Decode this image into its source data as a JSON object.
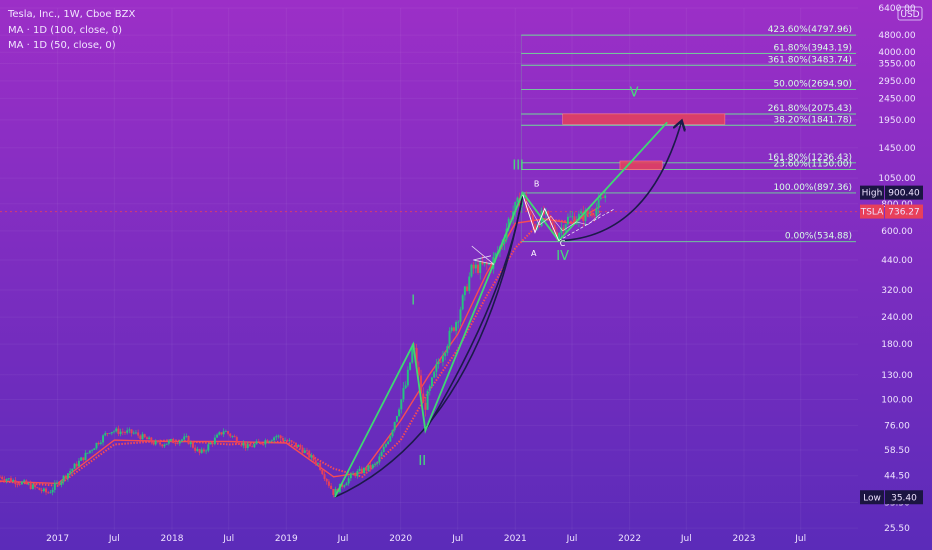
{
  "header": {
    "symbol_line": "Tesla, Inc., 1W, Cboe BZX",
    "ma1": "MA · 1D (100, close, 0)",
    "ma2": "MA · 1D (50, close, 0)"
  },
  "currency": "USD",
  "colors": {
    "bg_top": "#9a2ec4",
    "bg_bottom": "#5a2ab8",
    "fib": "#6fdc96",
    "wave": "#3fd874",
    "curve": "#1c1a4a",
    "candle_up": "#26c281",
    "candle_down": "#e8405a",
    "ma": "#ff4d4d",
    "zone": "#e8405a",
    "tsla": "#e8405a"
  },
  "chart_data": {
    "type": "candlestick",
    "scale": "log",
    "ylim": [
      25,
      6400
    ],
    "xlim": [
      "2016-07-01",
      "2023-12-31"
    ],
    "y_ticks": [
      "6400.00",
      "4800.00",
      "4000.00",
      "3550.00",
      "2950.00",
      "2450.00",
      "1950.00",
      "1450.00",
      "1050.00",
      "800.00",
      "600.00",
      "440.00",
      "320.00",
      "240.00",
      "180.00",
      "130.00",
      "100.00",
      "76.00",
      "58.50",
      "44.50",
      "33.50",
      "25.50"
    ],
    "y_tick_values": [
      6400,
      4800,
      4000,
      3550,
      2950,
      2450,
      1950,
      1450,
      1050,
      800,
      600,
      440,
      320,
      240,
      180,
      130,
      100,
      76,
      58.5,
      44.5,
      33.5,
      25.5
    ],
    "x_ticks": [
      {
        "label": "2017",
        "date": "2017-01-01"
      },
      {
        "label": "Jul",
        "date": "2017-07-01"
      },
      {
        "label": "2018",
        "date": "2018-01-01"
      },
      {
        "label": "Jul",
        "date": "2018-07-01"
      },
      {
        "label": "2019",
        "date": "2019-01-01"
      },
      {
        "label": "Jul",
        "date": "2019-07-01"
      },
      {
        "label": "2020",
        "date": "2020-01-01"
      },
      {
        "label": "Jul",
        "date": "2020-07-01"
      },
      {
        "label": "2021",
        "date": "2021-01-01"
      },
      {
        "label": "Jul",
        "date": "2021-07-01"
      },
      {
        "label": "2022",
        "date": "2022-01-01"
      },
      {
        "label": "Jul",
        "date": "2022-07-01"
      },
      {
        "label": "2023",
        "date": "2023-01-01"
      },
      {
        "label": "Jul",
        "date": "2023-07-01"
      }
    ],
    "price_path": [
      [
        "2016-07-01",
        44
      ],
      [
        "2016-09-15",
        41
      ],
      [
        "2016-12-01",
        37
      ],
      [
        "2017-03-01",
        50
      ],
      [
        "2017-06-15",
        72
      ],
      [
        "2017-09-01",
        70
      ],
      [
        "2017-11-15",
        62
      ],
      [
        "2018-02-15",
        66
      ],
      [
        "2018-04-01",
        56
      ],
      [
        "2018-06-15",
        72
      ],
      [
        "2018-09-01",
        60
      ],
      [
        "2018-12-01",
        68
      ],
      [
        "2019-02-15",
        60
      ],
      [
        "2019-04-15",
        50
      ],
      [
        "2019-06-01",
        37
      ],
      [
        "2019-08-01",
        45
      ],
      [
        "2019-10-15",
        50
      ],
      [
        "2019-12-01",
        70
      ],
      [
        "2020-01-20",
        120
      ],
      [
        "2020-02-10",
        180
      ],
      [
        "2020-03-15",
        90
      ],
      [
        "2020-05-01",
        150
      ],
      [
        "2020-07-01",
        240
      ],
      [
        "2020-08-15",
        400
      ],
      [
        "2020-09-15",
        410
      ],
      [
        "2020-10-15",
        420
      ],
      [
        "2020-11-15",
        510
      ],
      [
        "2020-12-15",
        700
      ],
      [
        "2021-01-25",
        880
      ],
      [
        "2021-03-01",
        620
      ],
      [
        "2021-04-01",
        720
      ],
      [
        "2021-05-15",
        580
      ],
      [
        "2021-06-15",
        680
      ],
      [
        "2021-08-01",
        700
      ],
      [
        "2021-09-15",
        760
      ],
      [
        "2021-10-20",
        900
      ]
    ],
    "moving_averages": [
      {
        "name": "MA · 1D (100, close, 0)",
        "values": [
          [
            "2016-07-01",
            42
          ],
          [
            "2017-01-01",
            40
          ],
          [
            "2017-07-01",
            62
          ],
          [
            "2018-01-01",
            65
          ],
          [
            "2018-07-01",
            62
          ],
          [
            "2019-01-01",
            64
          ],
          [
            "2019-06-01",
            48
          ],
          [
            "2019-09-01",
            44
          ],
          [
            "2020-01-01",
            65
          ],
          [
            "2020-04-01",
            110
          ],
          [
            "2020-07-01",
            170
          ],
          [
            "2020-10-01",
            300
          ],
          [
            "2021-01-01",
            500
          ],
          [
            "2021-04-01",
            680
          ],
          [
            "2021-07-01",
            660
          ],
          [
            "2021-10-01",
            740
          ]
        ]
      },
      {
        "name": "MA · 1D (50, close, 0)",
        "values": [
          [
            "2016-07-01",
            42
          ],
          [
            "2017-01-01",
            41
          ],
          [
            "2017-07-01",
            65
          ],
          [
            "2018-01-01",
            64
          ],
          [
            "2018-07-01",
            64
          ],
          [
            "2019-01-01",
            63
          ],
          [
            "2019-06-01",
            44
          ],
          [
            "2019-09-01",
            46
          ],
          [
            "2020-01-01",
            80
          ],
          [
            "2020-04-01",
            130
          ],
          [
            "2020-07-01",
            200
          ],
          [
            "2020-10-01",
            380
          ],
          [
            "2021-01-01",
            650
          ],
          [
            "2021-04-01",
            680
          ],
          [
            "2021-07-01",
            650
          ],
          [
            "2021-10-01",
            780
          ]
        ]
      }
    ],
    "fib_levels": [
      {
        "label": "423.60%(4797.96)",
        "value": 4797.96
      },
      {
        "label": "61.80%(3943.19)",
        "value": 3943.19
      },
      {
        "label": "361.80%(3483.74)",
        "value": 3483.74
      },
      {
        "label": "50.00%(2694.90)",
        "value": 2694.9
      },
      {
        "label": "261.80%(2075.43)",
        "value": 2075.43
      },
      {
        "label": "38.20%(1841.78)",
        "value": 1841.78
      },
      {
        "label": "161.80%(1236.43)",
        "value": 1236.43
      },
      {
        "label": "23.60%(1150.00)",
        "value": 1150.0
      },
      {
        "label": "100.00%(897.36)",
        "value": 897.36
      },
      {
        "label": "0.00%(534.88)",
        "value": 534.88
      }
    ],
    "zones": [
      {
        "from": "2021-06-01",
        "to": "2022-11-01",
        "low": 1860,
        "high": 2080
      },
      {
        "from": "2021-12-01",
        "to": "2022-04-15",
        "low": 1150,
        "high": 1260
      }
    ],
    "waves": [
      {
        "label": "I",
        "date": "2020-02-10",
        "price": 180
      },
      {
        "label": "II",
        "date": "2020-03-20",
        "price": 72
      },
      {
        "label": "III",
        "date": "2021-01-25",
        "price": 900
      },
      {
        "label": "IV",
        "date": "2021-05-20",
        "price": 540
      },
      {
        "label": "V",
        "date": "2022-05-01",
        "price": 1900
      }
    ],
    "wave_labels": [
      {
        "label": "I",
        "date": "2020-02-10",
        "price": 275
      },
      {
        "label": "II",
        "date": "2020-03-10",
        "price": 50
      },
      {
        "label": "III",
        "date": "2021-01-10",
        "price": 1150
      },
      {
        "label": "IV",
        "date": "2021-06-01",
        "price": 440
      },
      {
        "label": "V",
        "date": "2022-01-15",
        "price": 2500
      }
    ],
    "abc_labels": [
      {
        "label": "A",
        "date": "2021-03-01",
        "price": 460
      },
      {
        "label": "B",
        "date": "2021-03-10",
        "price": 960
      },
      {
        "label": "C",
        "date": "2021-06-01",
        "price": 510
      }
    ],
    "price_tags": [
      {
        "label": "High",
        "value": "900.40",
        "price": 900.4
      },
      {
        "label": "TSLA",
        "value": "736.27",
        "price": 736.27
      },
      {
        "label": "Low",
        "value": "35.40",
        "price": 35.4
      }
    ]
  }
}
